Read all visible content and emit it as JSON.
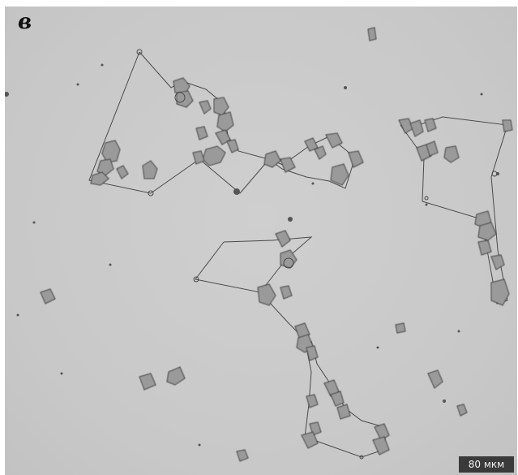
{
  "figure": {
    "panel_label": "в",
    "scale_bar_label": "80 мкм"
  },
  "colors": {
    "background": "#c8c8c8",
    "grain_fill": "#9a9a9a",
    "grain_edge": "#3a3a3a",
    "network_line": "#4a4a4a",
    "scale_bar_bg": "#3a3a3a",
    "scale_bar_text": "#f2f2f2"
  }
}
